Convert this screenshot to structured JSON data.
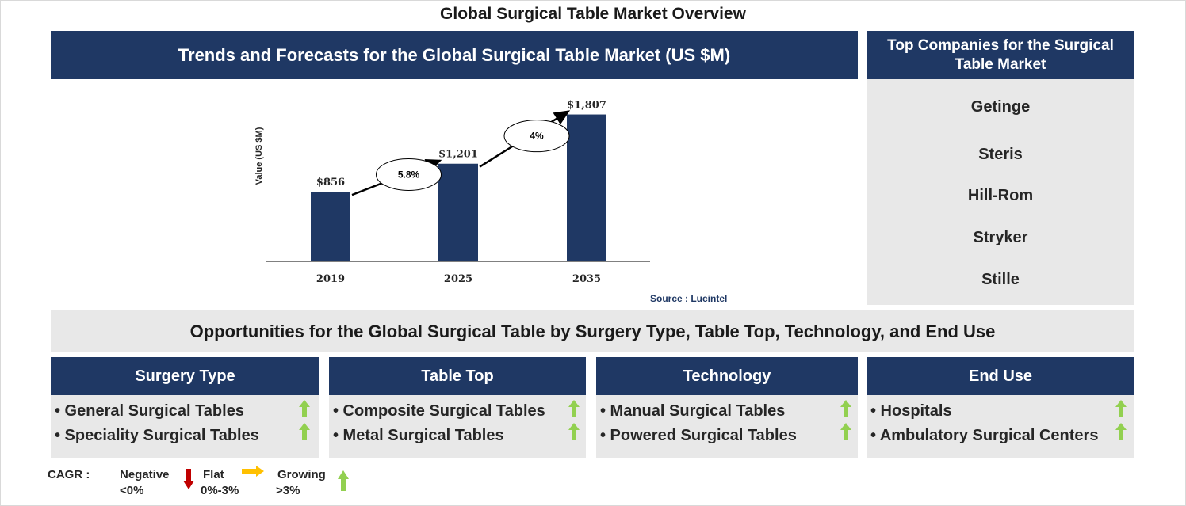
{
  "page_title": "Global Surgical Table Market Overview",
  "trend_header": "Trends and Forecasts for the Global Surgical Table Market (US $M)",
  "chart_data": {
    "type": "bar",
    "categories": [
      "2019",
      "2025",
      "2035"
    ],
    "values": [
      856,
      1201,
      1807
    ],
    "value_labels": [
      "$856",
      "$1,201",
      "$1,807"
    ],
    "ylabel": "Value (US $M)",
    "ylim": [
      0,
      1900
    ],
    "bar_color": "#1f3864",
    "cagr_annotations": [
      {
        "from": "2019",
        "to": "2025",
        "label": "5.8%"
      },
      {
        "from": "2025",
        "to": "2035",
        "label": "4%"
      }
    ]
  },
  "source": "Source : Lucintel",
  "companies_header": "Top Companies for the Surgical Table Market",
  "companies": [
    "Getinge",
    "Steris",
    "Hill-Rom",
    "Stryker",
    "Stille"
  ],
  "opportunities_title": "Opportunities for the Global Surgical Table by Surgery Type, Table Top, Technology, and End Use",
  "segments": [
    {
      "title": "Surgery Type",
      "items": [
        {
          "label": "• General Surgical Tables",
          "trend": "growing"
        },
        {
          "label": "• Speciality Surgical Tables",
          "trend": "growing"
        }
      ]
    },
    {
      "title": "Table Top",
      "items": [
        {
          "label": "• Composite Surgical Tables",
          "trend": "growing"
        },
        {
          "label": "• Metal Surgical Tables",
          "trend": "growing"
        }
      ]
    },
    {
      "title": "Technology",
      "items": [
        {
          "label": "• Manual Surgical Tables",
          "trend": "growing"
        },
        {
          "label": "• Powered Surgical Tables",
          "trend": "growing"
        }
      ]
    },
    {
      "title": "End Use",
      "items": [
        {
          "label": "• Hospitals",
          "trend": "growing"
        },
        {
          "label": "• Ambulatory Surgical Centers",
          "trend": "growing"
        }
      ]
    }
  ],
  "legend": {
    "cagr_label": "CAGR :",
    "negative_label": "Negative",
    "negative_range": "<0%",
    "flat_label": "Flat",
    "flat_range": "0%-3%",
    "growing_label": "Growing",
    "growing_range": ">3%"
  },
  "colors": {
    "navy": "#1f3864",
    "panel_grey": "#e8e8e8",
    "growing_arrow": "#92d050",
    "negative_arrow": "#c00000",
    "flat_arrow": "#ffc000"
  }
}
